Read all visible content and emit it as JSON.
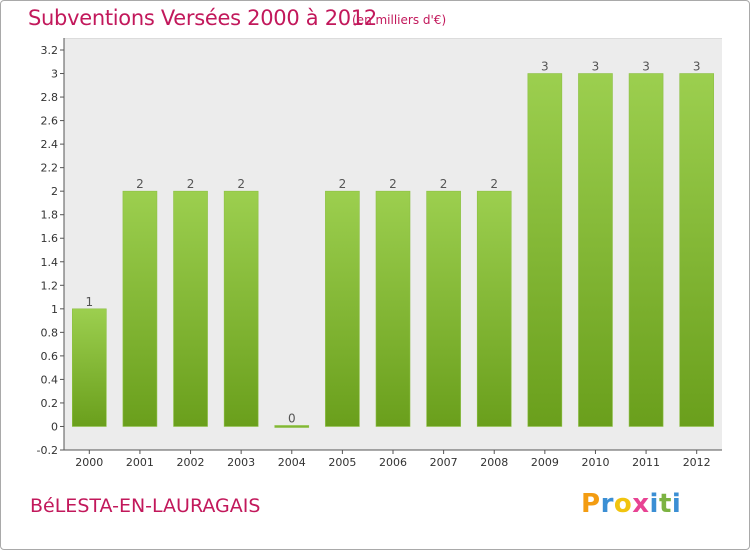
{
  "header": {
    "title": "Subventions Versées 2000 à 2012",
    "unit": "(en milliers d'€)"
  },
  "footer": {
    "commune": "BéLESTA-EN-LAURAGAIS",
    "logo_letters": [
      "P",
      "r",
      "o",
      "x",
      "i",
      "t",
      "i"
    ],
    "logo_colors": [
      "#f39c12",
      "#3b8fd4",
      "#f1c40f",
      "#e84393",
      "#3b8fd4",
      "#7cb342",
      "#3b8fd4"
    ]
  },
  "chart_data": {
    "type": "bar",
    "title": "Subventions Versées 2000 à 2012",
    "subtitle": "(en milliers d'€)",
    "categories": [
      "2000",
      "2001",
      "2002",
      "2003",
      "2004",
      "2005",
      "2006",
      "2007",
      "2008",
      "2009",
      "2010",
      "2011",
      "2012"
    ],
    "values": [
      1,
      2,
      2,
      2,
      0,
      2,
      2,
      2,
      2,
      3,
      3,
      3,
      3
    ],
    "value_labels": [
      "1",
      "2",
      "2",
      "2",
      "0",
      "2",
      "2",
      "2",
      "2",
      "3",
      "3",
      "3",
      "3"
    ],
    "ylim": [
      -0.2,
      3.2
    ],
    "yticks": [
      -0.2,
      0,
      0.2,
      0.4,
      0.6,
      0.8,
      1,
      1.2,
      1.4,
      1.6,
      1.8,
      2,
      2.2,
      2.4,
      2.6,
      2.8,
      3,
      3.2
    ],
    "ytick_labels": [
      "-0.2",
      "0",
      "0.2",
      "0.4",
      "0.6",
      "0.8",
      "1",
      "1.2",
      "1.4",
      "1.6",
      "1.8",
      "2",
      "2.2",
      "2.4",
      "2.6",
      "2.8",
      "3",
      "3.2"
    ],
    "bar_color_top": "#9ccf4f",
    "bar_color_bottom": "#6a9f1c",
    "label_color": "#555555",
    "grid": false,
    "legend": "none"
  }
}
